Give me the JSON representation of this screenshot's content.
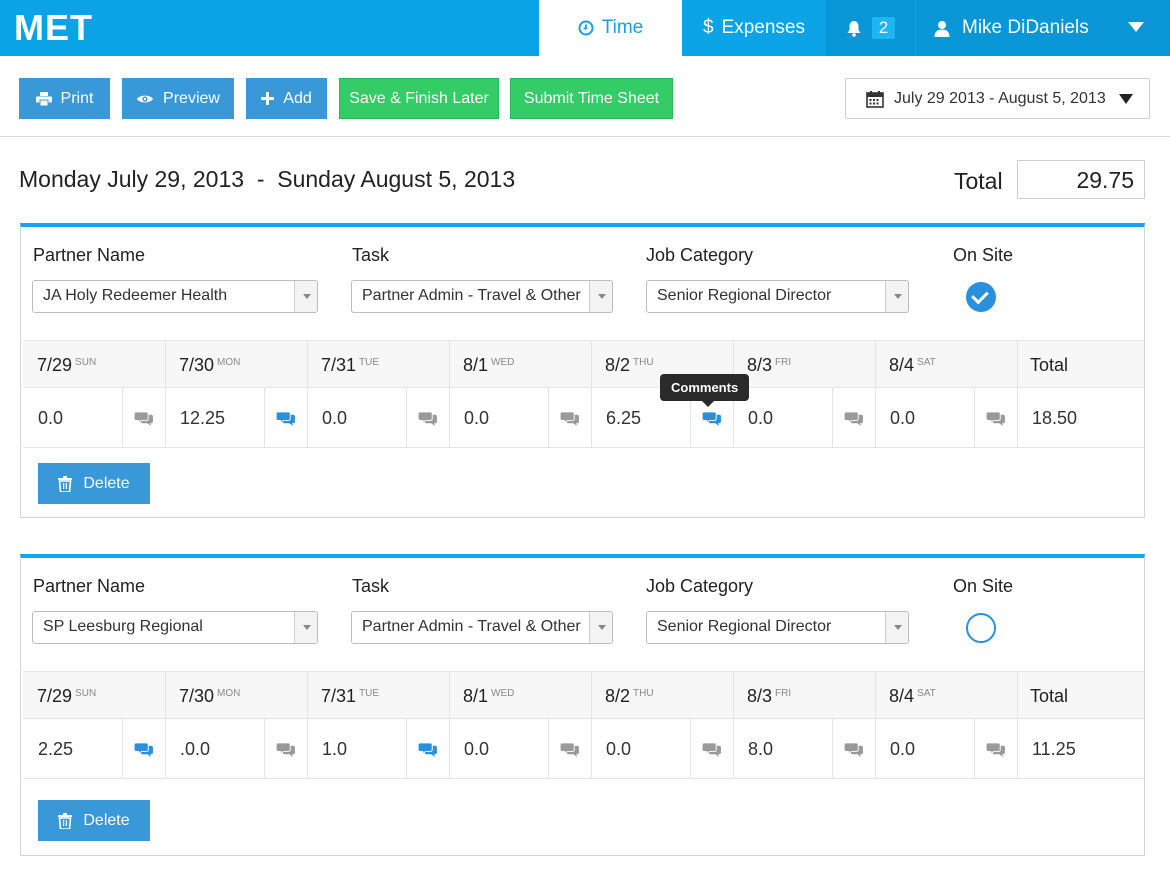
{
  "app": {
    "logo": "MET"
  },
  "nav": {
    "time_label": "Time",
    "expenses_label": "Expenses",
    "notification_count": "2",
    "user_name": "Mike DiDaniels"
  },
  "toolbar": {
    "print_label": "Print",
    "preview_label": "Preview",
    "add_label": "Add",
    "save_finish_label": "Save & Finish Later",
    "submit_label": "Submit Time Sheet",
    "date_range": "July 29 2013 - August 5, 2013"
  },
  "summary": {
    "range_title": "Monday July 29, 2013  -  Sunday August 5, 2013",
    "total_label": "Total",
    "total_value": "29.75"
  },
  "labels": {
    "partner_name": "Partner Name",
    "task": "Task",
    "job_category": "Job Category",
    "on_site": "On Site",
    "total": "Total",
    "delete": "Delete",
    "tooltip_comments": "Comments"
  },
  "days": [
    {
      "date": "7/29",
      "dow": "SUN"
    },
    {
      "date": "7/30",
      "dow": "MON"
    },
    {
      "date": "7/31",
      "dow": "TUE"
    },
    {
      "date": "8/1",
      "dow": "WED"
    },
    {
      "date": "8/2",
      "dow": "THU"
    },
    {
      "date": "8/3",
      "dow": "FRI"
    },
    {
      "date": "8/4",
      "dow": "SAT"
    }
  ],
  "entries": [
    {
      "partner": "JA Holy Redeemer Health",
      "task": "Partner Admin - Travel & Other",
      "job_category": "Senior Regional Director",
      "on_site": true,
      "hours": [
        "0.0",
        "12.25",
        "0.0",
        "0.0",
        "6.25",
        "0.0",
        "0.0"
      ],
      "has_comment": [
        false,
        true,
        false,
        false,
        true,
        false,
        false
      ],
      "total": "18.50"
    },
    {
      "partner": "SP Leesburg Regional",
      "task": "Partner Admin - Travel & Other",
      "job_category": "Senior Regional Director",
      "on_site": false,
      "hours": [
        "2.25",
        ".0.0",
        "1.0",
        "0.0",
        "0.0",
        "8.0",
        "0.0"
      ],
      "has_comment": [
        true,
        false,
        true,
        false,
        false,
        false,
        false
      ],
      "total": "11.25"
    }
  ],
  "colors": {
    "header_blue": "#0aa3e6",
    "button_blue": "#3898d8",
    "button_green": "#33cc66",
    "comment_active": "#2a8fdc",
    "comment_inactive": "#9a9a9a"
  }
}
